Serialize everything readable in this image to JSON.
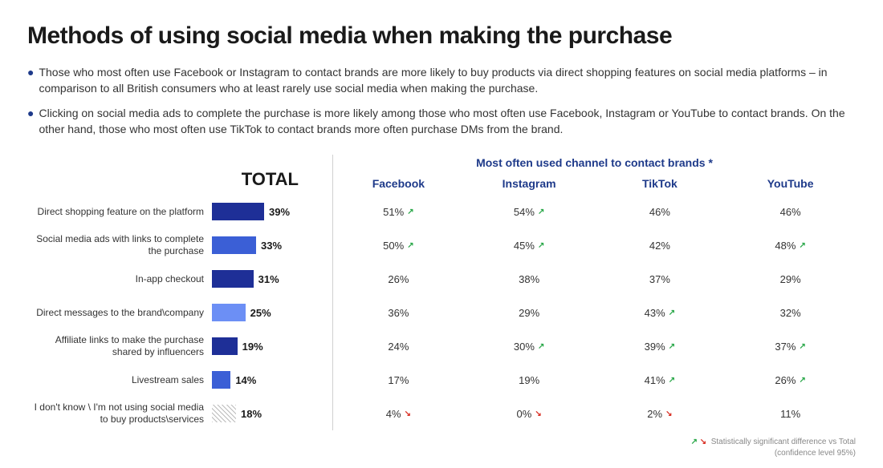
{
  "title": "Methods of using social media when making the purchase",
  "bullets": [
    "Those who most often use Facebook or Instagram to contact brands are more likely to buy products via direct shopping features on social media platforms – in comparison to all British consumers who at least rarely use social media when making the purchase.",
    "Clicking on social media ads to complete the purchase is more likely among those who most often use Facebook, Instagram or YouTube to contact brands. On the other hand, those who most often use TikTok to contact brands more often purchase DMs from the brand."
  ],
  "totalHeader": "TOTAL",
  "channelsHeader": "Most often used channel to contact brands *",
  "channels": [
    "Facebook",
    "Instagram",
    "TikTok",
    "YouTube"
  ],
  "barMax": 60,
  "barColors": {
    "dark": "#1e2f97",
    "mid": "#3b5fd6",
    "light": "#6c8ff5"
  },
  "rows": [
    {
      "label": "Direct shopping feature on the platform",
      "total": 39,
      "barShade": "dark",
      "cells": [
        {
          "v": "51%",
          "sig": "up"
        },
        {
          "v": "54%",
          "sig": "up"
        },
        {
          "v": "46%"
        },
        {
          "v": "46%"
        }
      ]
    },
    {
      "label": "Social media ads with links to complete the purchase",
      "total": 33,
      "barShade": "mid",
      "cells": [
        {
          "v": "50%",
          "sig": "up"
        },
        {
          "v": "45%",
          "sig": "up"
        },
        {
          "v": "42%"
        },
        {
          "v": "48%",
          "sig": "up"
        }
      ]
    },
    {
      "label": "In-app checkout",
      "total": 31,
      "barShade": "dark",
      "cells": [
        {
          "v": "26%"
        },
        {
          "v": "38%"
        },
        {
          "v": "37%"
        },
        {
          "v": "29%"
        }
      ]
    },
    {
      "label": "Direct messages to the brand\\company",
      "total": 25,
      "barShade": "light",
      "cells": [
        {
          "v": "36%"
        },
        {
          "v": "29%"
        },
        {
          "v": "43%",
          "sig": "up"
        },
        {
          "v": "32%"
        }
      ]
    },
    {
      "label": "Affiliate links to make the purchase shared by influencers",
      "total": 19,
      "barShade": "dark",
      "cells": [
        {
          "v": "24%"
        },
        {
          "v": "30%",
          "sig": "up"
        },
        {
          "v": "39%",
          "sig": "up"
        },
        {
          "v": "37%",
          "sig": "up"
        }
      ]
    },
    {
      "label": "Livestream sales",
      "total": 14,
      "barShade": "mid",
      "cells": [
        {
          "v": "17%"
        },
        {
          "v": "19%"
        },
        {
          "v": "41%",
          "sig": "up"
        },
        {
          "v": "26%",
          "sig": "up"
        }
      ]
    },
    {
      "label": "I don't know \\ I'm not using social media to buy products\\services",
      "total": 18,
      "barShade": "hatched",
      "cells": [
        {
          "v": "4%",
          "sig": "down"
        },
        {
          "v": "0%",
          "sig": "down"
        },
        {
          "v": "2%",
          "sig": "down"
        },
        {
          "v": "11%"
        }
      ]
    }
  ],
  "footnote": {
    "line1": "Statistically significant difference vs Total",
    "line2": "(confidence level 95%)"
  }
}
